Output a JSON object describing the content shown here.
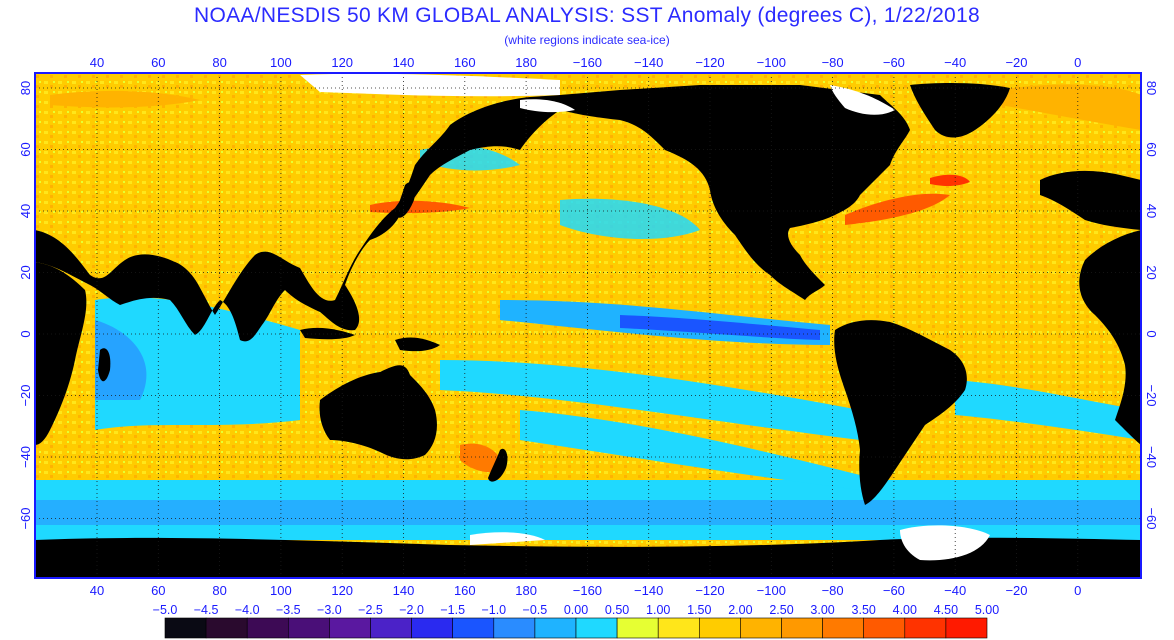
{
  "title": "NOAA/NESDIS 50 KM GLOBAL ANALYSIS: SST Anomaly (degrees C), 1/22/2018",
  "subtitle": "(white regions indicate sea-ice)",
  "lon_ticks": [
    "40",
    "60",
    "80",
    "100",
    "120",
    "140",
    "160",
    "180",
    "−160",
    "−140",
    "−120",
    "−100",
    "−80",
    "−60",
    "−40",
    "−20",
    "0"
  ],
  "lat_ticks": [
    "80",
    "60",
    "40",
    "20",
    "0",
    "−20",
    "−40",
    "−60"
  ],
  "colorbar": {
    "labels": [
      "−5.0",
      "−4.5",
      "−4.0",
      "−3.5",
      "−3.0",
      "−2.5",
      "−2.0",
      "−1.5",
      "−1.0",
      "−0.5",
      "0.00",
      "0.50",
      "1.00",
      "1.50",
      "2.00",
      "2.50",
      "3.00",
      "3.50",
      "4.00",
      "4.50",
      "5.00"
    ],
    "colors": [
      "#0a0a14",
      "#2a0a2e",
      "#3d0a55",
      "#4a0f78",
      "#5a18a0",
      "#4b22c8",
      "#2a2af0",
      "#1a55ff",
      "#2a8cff",
      "#1fb3ff",
      "#1fd9ff",
      "#e6ff33",
      "#ffe61a",
      "#ffcc00",
      "#ffb300",
      "#ff9900",
      "#ff7a00",
      "#ff5a00",
      "#ff3300",
      "#ff1a00"
    ]
  },
  "colors": {
    "land": "#000000",
    "sea_ice": "#ffffff",
    "frame": "#1a1aff"
  }
}
